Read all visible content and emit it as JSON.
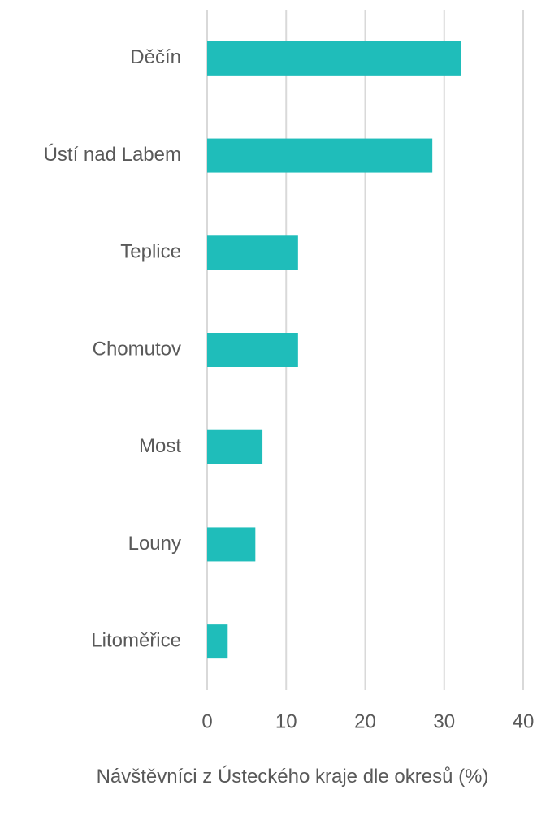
{
  "chart_data": {
    "type": "bar",
    "orientation": "horizontal",
    "x_label": "Návštěvníci z Ústeckého kraje dle okresů (%)",
    "categories": [
      "Děčín",
      "Ústí nad Labem",
      "Teplice",
      "Chomutov",
      "Most",
      "Louny",
      "Litoměřice"
    ],
    "values": [
      32.1,
      28.5,
      11.5,
      11.5,
      7.0,
      6.1,
      2.6
    ],
    "color": "#1fbdba",
    "xlim": [
      0,
      40
    ],
    "xticks": [
      0,
      10,
      20,
      30,
      40
    ],
    "grid": true
  }
}
